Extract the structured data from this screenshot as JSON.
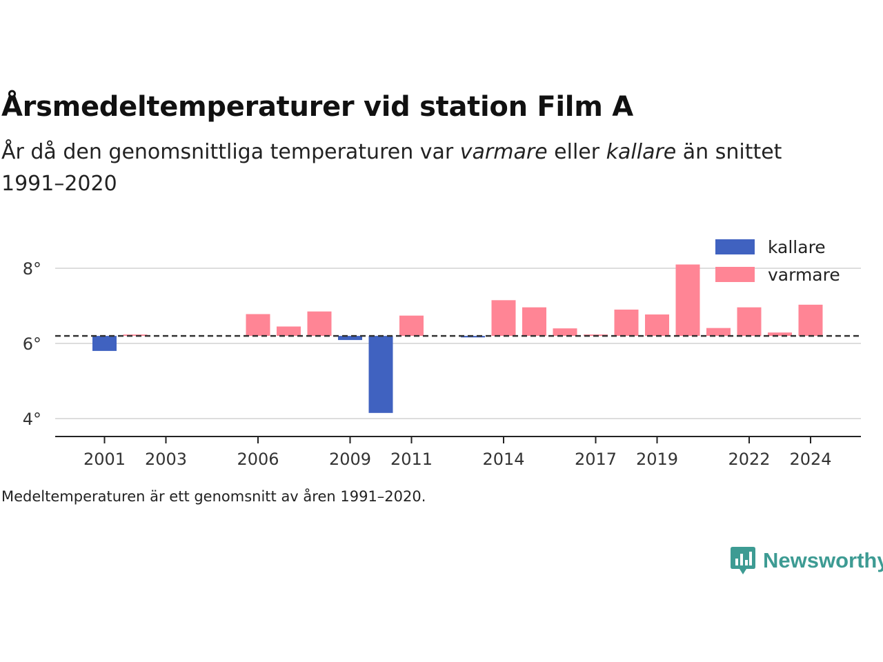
{
  "title": "Årsmedeltemperaturer vid station Film A",
  "subtitle_parts": [
    "År då den genomsnittliga temperaturen var ",
    "varmare",
    " eller ",
    "kallare",
    " än snittet 1991–2020"
  ],
  "footnote": "Medeltemperaturen är ett genomsnitt av åren 1991–2020.",
  "brand": {
    "name": "Newsworthy",
    "icon": "newsworthy-logo-icon",
    "color": "#3d9b93"
  },
  "colors": {
    "kallare": "#4062c0",
    "varmare": "#ff8595",
    "reference": "#333333",
    "grid": "#dddddd"
  },
  "chart_data": {
    "type": "bar",
    "baseline": 6.2,
    "baseline_style": "dashed",
    "ylim": [
      3.5,
      8.9
    ],
    "y_ticks": [
      4,
      6,
      8
    ],
    "y_tick_labels": [
      "4°",
      "6°",
      "8°"
    ],
    "x_range": [
      2000,
      2025
    ],
    "x_ticks": [
      2001,
      2003,
      2006,
      2009,
      2011,
      2014,
      2017,
      2019,
      2022,
      2024
    ],
    "x_tick_labels": [
      "2001",
      "2003",
      "2006",
      "2009",
      "2011",
      "2014",
      "2017",
      "2019",
      "2022",
      "2024"
    ],
    "legend": {
      "position": "top-right",
      "entries": [
        "kallare",
        "varmare"
      ]
    },
    "grid": true,
    "points": [
      {
        "year": 2001,
        "value": 5.8,
        "category": "kallare"
      },
      {
        "year": 2002,
        "value": 6.2,
        "category": "varmare"
      },
      {
        "year": 2006,
        "value": 6.78,
        "category": "varmare"
      },
      {
        "year": 2007,
        "value": 6.45,
        "category": "varmare"
      },
      {
        "year": 2008,
        "value": 6.85,
        "category": "varmare"
      },
      {
        "year": 2009,
        "value": 6.09,
        "category": "kallare"
      },
      {
        "year": 2010,
        "value": 4.15,
        "category": "kallare"
      },
      {
        "year": 2011,
        "value": 6.74,
        "category": "varmare"
      },
      {
        "year": 2013,
        "value": 6.16,
        "category": "kallare"
      },
      {
        "year": 2014,
        "value": 7.15,
        "category": "varmare"
      },
      {
        "year": 2015,
        "value": 6.96,
        "category": "varmare"
      },
      {
        "year": 2016,
        "value": 6.4,
        "category": "varmare"
      },
      {
        "year": 2017,
        "value": 6.23,
        "category": "varmare"
      },
      {
        "year": 2018,
        "value": 6.9,
        "category": "varmare"
      },
      {
        "year": 2019,
        "value": 6.77,
        "category": "varmare"
      },
      {
        "year": 2020,
        "value": 8.1,
        "category": "varmare"
      },
      {
        "year": 2021,
        "value": 6.41,
        "category": "varmare"
      },
      {
        "year": 2022,
        "value": 6.96,
        "category": "varmare"
      },
      {
        "year": 2023,
        "value": 6.29,
        "category": "varmare"
      },
      {
        "year": 2024,
        "value": 7.03,
        "category": "varmare"
      }
    ]
  }
}
